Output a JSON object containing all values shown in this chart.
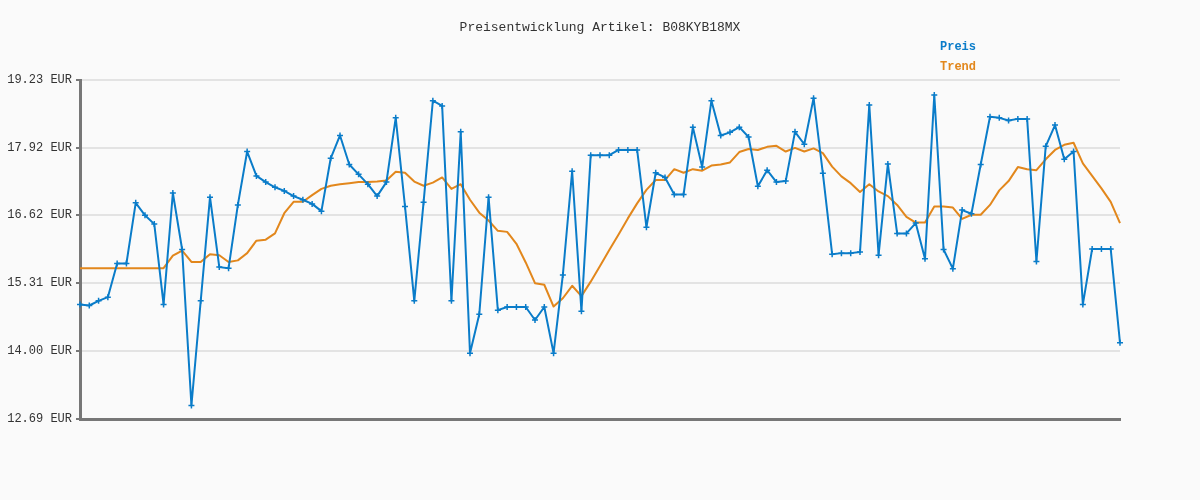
{
  "chart_data": {
    "type": "line",
    "title": "Preisentwicklung Artikel: B08KYB18MX",
    "categories": [
      null,
      null,
      null,
      null,
      null,
      null,
      null,
      null,
      null,
      null,
      null,
      null,
      null,
      null,
      null,
      null,
      null,
      null,
      null,
      null,
      null,
      null,
      null,
      null,
      null,
      null,
      null,
      null,
      null,
      null,
      null,
      null,
      null,
      null,
      null,
      null,
      null,
      null,
      null,
      null,
      null,
      null,
      null,
      null,
      null,
      null,
      null,
      null,
      null,
      null,
      null,
      null,
      null,
      null,
      null,
      null,
      null,
      null,
      null,
      null,
      null,
      null,
      null,
      null,
      null,
      null,
      null,
      null,
      null,
      null,
      null,
      null,
      null,
      null,
      null,
      null,
      null,
      null,
      null,
      null,
      null,
      null,
      null,
      null,
      null,
      null,
      null,
      null,
      null,
      null,
      null,
      null,
      null,
      null,
      null,
      null,
      null,
      null,
      null,
      null,
      null,
      null,
      null,
      null,
      null,
      null,
      null,
      null,
      null,
      null,
      null,
      null,
      null
    ],
    "series": [
      {
        "name": "Preis",
        "color": "#0a7cc9",
        "marker": "cross",
        "values": [
          14.9,
          14.88,
          14.97,
          15.04,
          15.69,
          15.69,
          16.86,
          16.62,
          16.45,
          14.9,
          17.05,
          15.96,
          12.95,
          14.97,
          16.97,
          15.62,
          15.6,
          16.82,
          17.85,
          17.38,
          17.26,
          17.16,
          17.09,
          16.99,
          16.92,
          16.84,
          16.7,
          17.72,
          18.16,
          17.6,
          17.41,
          17.22,
          16.99,
          17.26,
          18.5,
          16.79,
          14.97,
          16.87,
          18.83,
          18.73,
          14.97,
          18.23,
          13.96,
          14.71,
          16.97,
          14.79,
          14.85,
          14.85,
          14.85,
          14.6,
          14.85,
          13.96,
          15.47,
          17.47,
          14.77,
          17.78,
          17.78,
          17.78,
          17.88,
          17.88,
          17.88,
          16.39,
          17.44,
          17.35,
          17.02,
          17.02,
          18.32,
          17.55,
          18.83,
          18.16,
          18.22,
          18.32,
          18.13,
          17.18,
          17.49,
          17.26,
          17.28,
          18.23,
          17.99,
          18.88,
          17.43,
          15.87,
          15.89,
          15.89,
          15.91,
          18.75,
          15.85,
          17.61,
          16.27,
          16.27,
          16.47,
          15.78,
          18.94,
          15.96,
          15.59,
          16.72,
          16.65,
          17.6,
          18.52,
          18.5,
          18.45,
          18.48,
          18.48,
          15.73,
          17.95,
          18.36,
          17.7,
          17.85,
          14.9,
          15.97,
          15.97,
          15.97,
          14.16
        ]
      },
      {
        "name": "Trend",
        "color": "#e2871c",
        "marker": "none",
        "values": [
          15.6,
          15.6,
          15.6,
          15.6,
          15.6,
          15.6,
          15.6,
          15.6,
          15.6,
          15.6,
          15.84,
          15.94,
          15.72,
          15.72,
          15.87,
          15.85,
          15.72,
          15.75,
          15.89,
          16.13,
          16.15,
          16.27,
          16.66,
          16.88,
          16.88,
          17.01,
          17.13,
          17.19,
          17.22,
          17.24,
          17.26,
          17.26,
          17.27,
          17.29,
          17.46,
          17.44,
          17.27,
          17.19,
          17.25,
          17.35,
          17.13,
          17.22,
          16.92,
          16.67,
          16.52,
          16.32,
          16.3,
          16.07,
          15.71,
          15.31,
          15.28,
          14.86,
          15.02,
          15.26,
          15.06,
          15.34,
          15.64,
          15.95,
          16.25,
          16.56,
          16.85,
          17.11,
          17.3,
          17.3,
          17.51,
          17.44,
          17.51,
          17.48,
          17.58,
          17.6,
          17.64,
          17.84,
          17.9,
          17.88,
          17.94,
          17.96,
          17.85,
          17.92,
          17.85,
          17.91,
          17.82,
          17.56,
          17.37,
          17.24,
          17.07,
          17.22,
          17.08,
          16.99,
          16.82,
          16.59,
          16.48,
          16.48,
          16.79,
          16.79,
          16.77,
          16.55,
          16.63,
          16.63,
          16.82,
          17.1,
          17.28,
          17.55,
          17.51,
          17.49,
          17.7,
          17.88,
          17.98,
          18.02,
          17.62,
          17.38,
          17.14,
          16.88,
          16.47
        ]
      }
    ],
    "ylim": [
      12.69,
      19.23
    ],
    "yticks": [
      {
        "value": 12.69,
        "label": "12.69 EUR"
      },
      {
        "value": 14.0,
        "label": "14.00 EUR"
      },
      {
        "value": 15.31,
        "label": "15.31 EUR"
      },
      {
        "value": 16.62,
        "label": "16.62 EUR"
      },
      {
        "value": 17.92,
        "label": "17.92 EUR"
      },
      {
        "value": 19.23,
        "label": "19.23 EUR"
      }
    ],
    "grid": "y",
    "legend": "top right",
    "line_style": "solid"
  }
}
